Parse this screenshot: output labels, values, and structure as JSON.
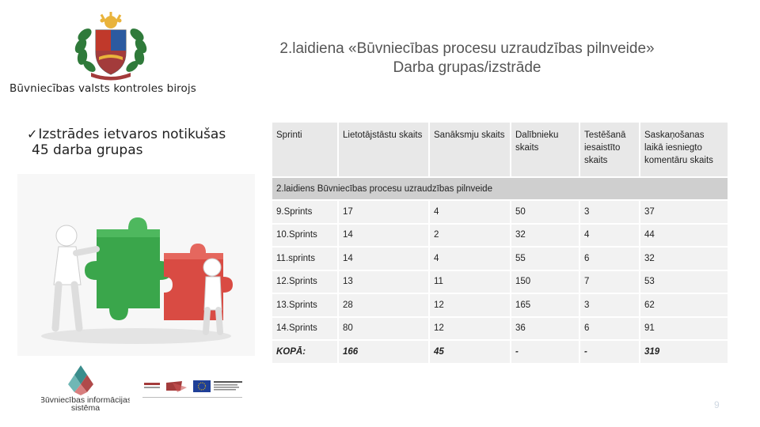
{
  "org": {
    "name": "Būvniecības valsts kontroles birojs"
  },
  "title": {
    "line1": "2.laidiena «Būvniecības procesu uzraudzības pilnveide»",
    "line2": "Darba grupas/izstrāde"
  },
  "bullet": {
    "line1": "Izstrādes ietvaros notikušas",
    "line2": "45 darba grupas"
  },
  "table": {
    "headers": [
      "Sprinti",
      "Lietotājstāstu skaits",
      "Sanāksmju skaits",
      "Dalībnieku skaits",
      "Testēšanā iesaistīto skaits",
      "Saskaņošanas laikā iesniegto komentāru skaits"
    ],
    "group_label": "2.laidiens Būvniecības procesu uzraudzības pilnveide",
    "rows": [
      [
        "9.Sprints",
        "17",
        "4",
        "50",
        "3",
        "37"
      ],
      [
        "10.Sprints",
        "14",
        "2",
        "32",
        "4",
        "44"
      ],
      [
        "11.sprints",
        "14",
        "4",
        "55",
        "6",
        "32"
      ],
      [
        "12.Sprints",
        "13",
        "11",
        "150",
        "7",
        "53"
      ],
      [
        "13.Sprints",
        "28",
        "12",
        "165",
        "3",
        "62"
      ],
      [
        "14.Sprints",
        "80",
        "12",
        "36",
        "6",
        "91"
      ]
    ],
    "total": [
      "KOPĀ:",
      "166",
      "45",
      "-",
      "-",
      "319"
    ]
  },
  "footer": {
    "bis_name_line1": "Būvniecības informācijas",
    "bis_name_line2": "sistēma",
    "page_number": "9"
  },
  "colors": {
    "header_bg": "#e8e8e8",
    "group_bg": "#cfcfcf",
    "row_bg": "#f2f2f2",
    "puzzle_green": "#3aa64b",
    "puzzle_red": "#d94b43"
  },
  "icons": [
    "coat-of-arms-icon",
    "checkmark-icon",
    "puzzle-people-illustration",
    "bis-logo-icon",
    "eu-flag-icon"
  ]
}
